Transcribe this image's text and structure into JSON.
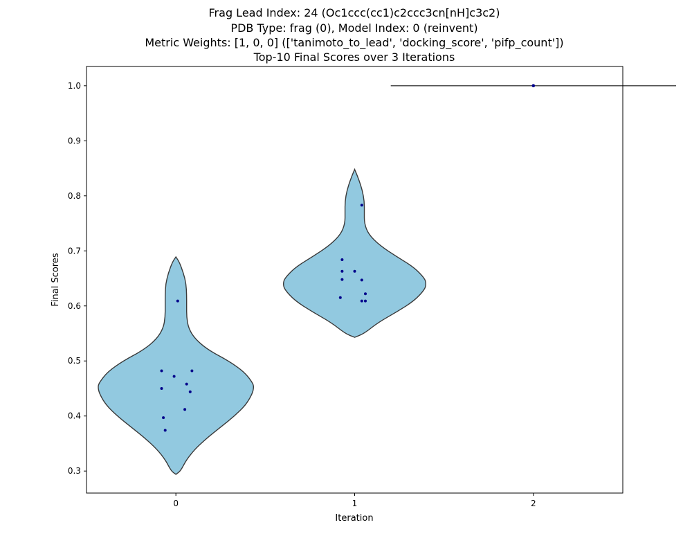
{
  "chart_data": {
    "type": "violin",
    "title_lines": [
      "Frag Lead Index: 24 (Oc1ccc(cc1)c2ccc3cn[nH]c3c2)",
      "PDB Type: frag (0), Model Index: 0 (reinvent)",
      "Metric Weights: [1, 0, 0] (['tanimoto_to_lead', 'docking_score', 'pifp_count'])",
      "Top-10 Final Scores over 3 Iterations"
    ],
    "xlabel": "Iteration",
    "ylabel": "Final Scores",
    "categories": [
      "0",
      "1",
      "2"
    ],
    "y_ticks": [
      "0.3",
      "0.4",
      "0.5",
      "0.6",
      "0.7",
      "0.8",
      "0.9",
      "1.0"
    ],
    "ylim": [
      0.26,
      1.035
    ],
    "grid": false,
    "colors": {
      "violin_fill": "#92c9e0",
      "violin_edge": "#3a3a3a",
      "point": "#00008b"
    },
    "points": [
      [
        0.482,
        0.482,
        0.472,
        0.458,
        0.45,
        0.444,
        0.412,
        0.397,
        0.374,
        0.609
      ],
      [
        0.684,
        0.663,
        0.663,
        0.648,
        0.647,
        0.622,
        0.615,
        0.609,
        0.609,
        0.783
      ],
      [
        1.0,
        1.0,
        1.0,
        1.0,
        1.0,
        1.0,
        1.0,
        1.0,
        1.0,
        1.0
      ]
    ],
    "violins": [
      {
        "y_min": 0.294,
        "y_max": 0.689,
        "profile": [
          [
            0.294,
            0.0
          ],
          [
            0.3,
            0.026
          ],
          [
            0.32,
            0.058
          ],
          [
            0.34,
            0.107
          ],
          [
            0.36,
            0.174
          ],
          [
            0.38,
            0.251
          ],
          [
            0.4,
            0.328
          ],
          [
            0.42,
            0.391
          ],
          [
            0.44,
            0.427
          ],
          [
            0.452,
            0.436
          ],
          [
            0.46,
            0.43
          ],
          [
            0.48,
            0.383
          ],
          [
            0.5,
            0.295
          ],
          [
            0.52,
            0.181
          ],
          [
            0.54,
            0.107
          ],
          [
            0.56,
            0.07
          ],
          [
            0.58,
            0.06
          ],
          [
            0.6,
            0.06
          ],
          [
            0.62,
            0.06
          ],
          [
            0.64,
            0.057
          ],
          [
            0.66,
            0.042
          ],
          [
            0.68,
            0.019
          ],
          [
            0.689,
            0.0
          ]
        ]
      },
      {
        "y_min": 0.543,
        "y_max": 0.848,
        "profile": [
          [
            0.543,
            0.0
          ],
          [
            0.55,
            0.054
          ],
          [
            0.57,
            0.132
          ],
          [
            0.59,
            0.24
          ],
          [
            0.61,
            0.336
          ],
          [
            0.63,
            0.392
          ],
          [
            0.64,
            0.4
          ],
          [
            0.65,
            0.392
          ],
          [
            0.67,
            0.333
          ],
          [
            0.69,
            0.233
          ],
          [
            0.71,
            0.14
          ],
          [
            0.73,
            0.078
          ],
          [
            0.75,
            0.054
          ],
          [
            0.77,
            0.054
          ],
          [
            0.79,
            0.054
          ],
          [
            0.81,
            0.043
          ],
          [
            0.83,
            0.023
          ],
          [
            0.848,
            0.0
          ]
        ]
      },
      {
        "y_min": 1.0,
        "y_max": 1.0,
        "profile": [
          [
            1.0,
            0.798
          ]
        ]
      }
    ]
  }
}
